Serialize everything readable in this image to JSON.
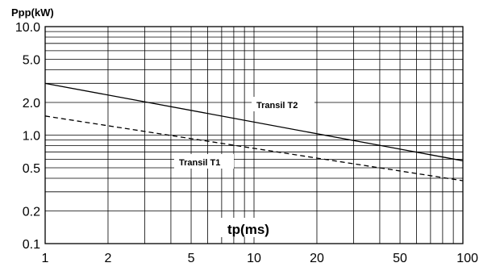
{
  "chart_data": {
    "type": "line",
    "ylabel": "Ppp(kW)",
    "xlabel": "tp(ms)",
    "x_scale": "log",
    "y_scale": "log",
    "xlim": [
      1,
      100
    ],
    "ylim": [
      0.1,
      10
    ],
    "grid": true,
    "x_tick_labels": [
      "1",
      "2",
      "5",
      "10",
      "20",
      "50",
      "100"
    ],
    "x_tick_values": [
      1,
      2,
      5,
      10,
      20,
      50,
      100
    ],
    "y_tick_labels": [
      "10.0",
      "5.0",
      "2.0",
      "1.0",
      "0.5",
      "0.2",
      "0.1"
    ],
    "y_tick_values": [
      10,
      5,
      2,
      1,
      0.5,
      0.2,
      0.1
    ],
    "series": [
      {
        "name": "Transil T2",
        "line_style": "solid",
        "color": "#000000",
        "x": [
          1,
          100
        ],
        "y": [
          3.0,
          0.58
        ]
      },
      {
        "name": "Transil T1",
        "line_style": "dashed",
        "color": "#000000",
        "x": [
          1,
          100
        ],
        "y": [
          1.5,
          0.38
        ]
      }
    ]
  }
}
